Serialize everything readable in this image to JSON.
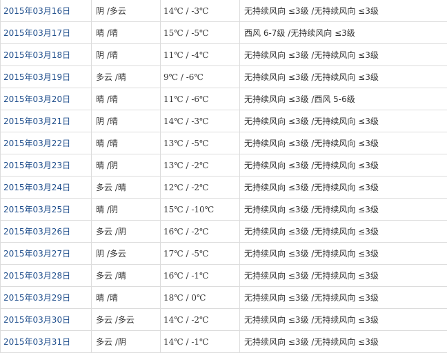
{
  "rows": [
    {
      "date": "2015年03月16日",
      "weather": "阴 /多云",
      "temp": "14℃ / -3℃",
      "wind": "无持续风向 ≤3级 /无持续风向 ≤3级"
    },
    {
      "date": "2015年03月17日",
      "weather": "晴 /晴",
      "temp": "15℃ / -5℃",
      "wind": "西风 6-7级 /无持续风向 ≤3级"
    },
    {
      "date": "2015年03月18日",
      "weather": "阴 /晴",
      "temp": "11℃ / -4℃",
      "wind": "无持续风向 ≤3级 /无持续风向 ≤3级"
    },
    {
      "date": "2015年03月19日",
      "weather": "多云 /晴",
      "temp": "9℃ / -6℃",
      "wind": "无持续风向 ≤3级 /无持续风向 ≤3级"
    },
    {
      "date": "2015年03月20日",
      "weather": "晴 /晴",
      "temp": "11℃ / -6℃",
      "wind": "无持续风向 ≤3级 /西风 5-6级"
    },
    {
      "date": "2015年03月21日",
      "weather": "阴 /晴",
      "temp": "14℃ / -3℃",
      "wind": "无持续风向 ≤3级 /无持续风向 ≤3级"
    },
    {
      "date": "2015年03月22日",
      "weather": "晴 /晴",
      "temp": "13℃ / -5℃",
      "wind": "无持续风向 ≤3级 /无持续风向 ≤3级"
    },
    {
      "date": "2015年03月23日",
      "weather": "晴 /阴",
      "temp": "13℃ / -2℃",
      "wind": "无持续风向 ≤3级 /无持续风向 ≤3级"
    },
    {
      "date": "2015年03月24日",
      "weather": "多云 /晴",
      "temp": "12℃ / -2℃",
      "wind": "无持续风向 ≤3级 /无持续风向 ≤3级"
    },
    {
      "date": "2015年03月25日",
      "weather": "晴 /阴",
      "temp": "15℃ / -10℃",
      "wind": "无持续风向 ≤3级 /无持续风向 ≤3级"
    },
    {
      "date": "2015年03月26日",
      "weather": "多云 /阴",
      "temp": "16℃ / -2℃",
      "wind": "无持续风向 ≤3级 /无持续风向 ≤3级"
    },
    {
      "date": "2015年03月27日",
      "weather": "阴 /多云",
      "temp": "17℃ / -5℃",
      "wind": "无持续风向 ≤3级 /无持续风向 ≤3级"
    },
    {
      "date": "2015年03月28日",
      "weather": "多云 /晴",
      "temp": "16℃ / -1℃",
      "wind": "无持续风向 ≤3级 /无持续风向 ≤3级"
    },
    {
      "date": "2015年03月29日",
      "weather": "晴 /晴",
      "temp": "18℃ / 0℃",
      "wind": "无持续风向 ≤3级 /无持续风向 ≤3级"
    },
    {
      "date": "2015年03月30日",
      "weather": "多云 /多云",
      "temp": "14℃ / -2℃",
      "wind": "无持续风向 ≤3级 /无持续风向 ≤3级"
    },
    {
      "date": "2015年03月31日",
      "weather": "多云 /阴",
      "temp": "14℃ / -1℃",
      "wind": "无持续风向 ≤3级 /无持续风向 ≤3级"
    }
  ]
}
